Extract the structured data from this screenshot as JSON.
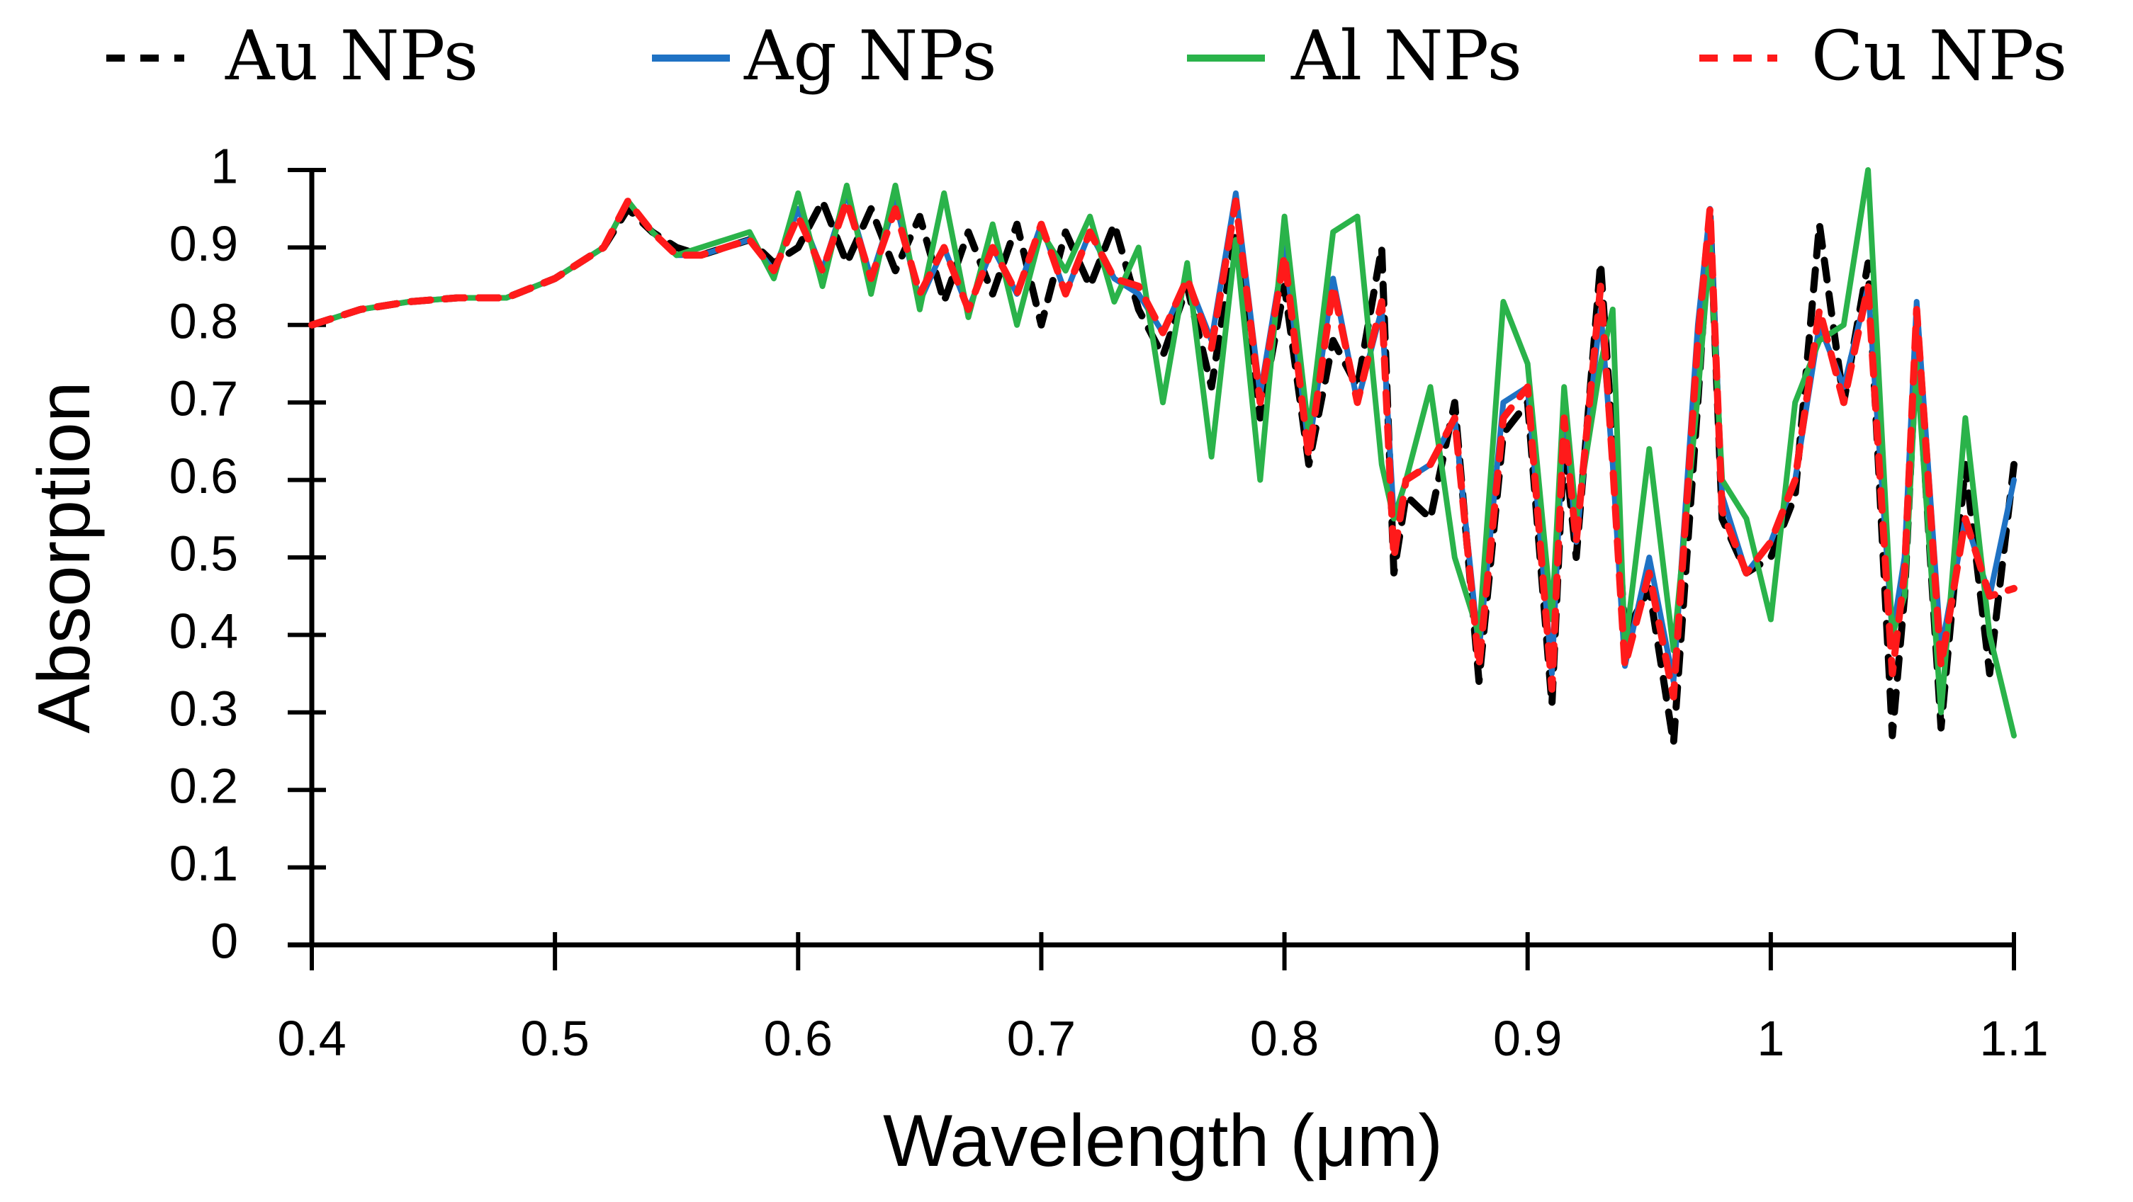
{
  "chart_data": {
    "type": "line",
    "title": "",
    "xlabel": "Wavelength (μm)",
    "ylabel": "Absorption",
    "xlim": [
      0.4,
      1.1
    ],
    "ylim": [
      0,
      1
    ],
    "xticks": [
      "0.4",
      "0.5",
      "0.6",
      "0.7",
      "0.8",
      "0.9",
      "1",
      "1.1"
    ],
    "yticks": [
      "0",
      "0.1",
      "0.2",
      "0.3",
      "0.4",
      "0.5",
      "0.6",
      "0.7",
      "0.8",
      "0.9",
      "1"
    ],
    "legend_position": "top",
    "series": [
      {
        "name": "Au NPs",
        "color": "#000000",
        "dash": "dashed",
        "x": [
          0.4,
          0.42,
          0.44,
          0.46,
          0.48,
          0.5,
          0.52,
          0.53,
          0.54,
          0.55,
          0.56,
          0.57,
          0.58,
          0.59,
          0.6,
          0.61,
          0.62,
          0.63,
          0.64,
          0.65,
          0.66,
          0.67,
          0.68,
          0.69,
          0.7,
          0.71,
          0.72,
          0.73,
          0.74,
          0.75,
          0.76,
          0.77,
          0.78,
          0.79,
          0.8,
          0.81,
          0.82,
          0.83,
          0.84,
          0.845,
          0.85,
          0.86,
          0.87,
          0.88,
          0.89,
          0.9,
          0.91,
          0.915,
          0.92,
          0.93,
          0.935,
          0.94,
          0.95,
          0.96,
          0.97,
          0.975,
          0.98,
          0.99,
          1.0,
          1.01,
          1.02,
          1.03,
          1.04,
          1.05,
          1.055,
          1.06,
          1.07,
          1.08,
          1.09,
          1.1
        ],
        "y": [
          0.8,
          0.82,
          0.83,
          0.835,
          0.835,
          0.86,
          0.9,
          0.95,
          0.92,
          0.9,
          0.89,
          0.9,
          0.91,
          0.88,
          0.9,
          0.96,
          0.88,
          0.95,
          0.87,
          0.94,
          0.83,
          0.92,
          0.84,
          0.93,
          0.8,
          0.92,
          0.85,
          0.93,
          0.82,
          0.76,
          0.85,
          0.72,
          0.92,
          0.68,
          0.85,
          0.62,
          0.78,
          0.72,
          0.9,
          0.48,
          0.58,
          0.55,
          0.7,
          0.34,
          0.66,
          0.7,
          0.31,
          0.65,
          0.5,
          0.88,
          0.65,
          0.4,
          0.46,
          0.26,
          0.7,
          0.94,
          0.55,
          0.48,
          0.5,
          0.58,
          0.93,
          0.7,
          0.88,
          0.27,
          0.45,
          0.78,
          0.28,
          0.62,
          0.35,
          0.62
        ]
      },
      {
        "name": "Ag NPs",
        "color": "#1f72c4",
        "dash": "solid",
        "x": [
          0.4,
          0.42,
          0.44,
          0.46,
          0.48,
          0.5,
          0.52,
          0.53,
          0.54,
          0.55,
          0.56,
          0.57,
          0.58,
          0.59,
          0.6,
          0.61,
          0.62,
          0.63,
          0.64,
          0.65,
          0.66,
          0.67,
          0.68,
          0.69,
          0.7,
          0.71,
          0.72,
          0.73,
          0.74,
          0.75,
          0.76,
          0.77,
          0.78,
          0.79,
          0.8,
          0.81,
          0.82,
          0.83,
          0.84,
          0.845,
          0.85,
          0.86,
          0.87,
          0.88,
          0.89,
          0.9,
          0.91,
          0.915,
          0.92,
          0.93,
          0.935,
          0.94,
          0.95,
          0.96,
          0.97,
          0.975,
          0.98,
          0.99,
          1.0,
          1.01,
          1.02,
          1.03,
          1.04,
          1.05,
          1.055,
          1.06,
          1.07,
          1.08,
          1.09,
          1.1
        ],
        "y": [
          0.8,
          0.82,
          0.83,
          0.835,
          0.835,
          0.86,
          0.9,
          0.96,
          0.92,
          0.89,
          0.89,
          0.9,
          0.91,
          0.87,
          0.95,
          0.87,
          0.97,
          0.86,
          0.96,
          0.83,
          0.9,
          0.82,
          0.9,
          0.84,
          0.93,
          0.84,
          0.92,
          0.86,
          0.84,
          0.79,
          0.86,
          0.78,
          0.97,
          0.71,
          0.9,
          0.64,
          0.86,
          0.7,
          0.82,
          0.55,
          0.6,
          0.62,
          0.68,
          0.38,
          0.7,
          0.72,
          0.35,
          0.7,
          0.52,
          0.82,
          0.62,
          0.36,
          0.5,
          0.34,
          0.8,
          0.95,
          0.58,
          0.48,
          0.52,
          0.6,
          0.8,
          0.72,
          0.85,
          0.4,
          0.5,
          0.83,
          0.38,
          0.55,
          0.45,
          0.6
        ]
      },
      {
        "name": "Al NPs",
        "color": "#2ab34a",
        "dash": "solid",
        "x": [
          0.4,
          0.42,
          0.44,
          0.46,
          0.48,
          0.5,
          0.52,
          0.53,
          0.54,
          0.55,
          0.56,
          0.57,
          0.58,
          0.59,
          0.6,
          0.61,
          0.62,
          0.63,
          0.64,
          0.65,
          0.66,
          0.67,
          0.68,
          0.69,
          0.7,
          0.71,
          0.72,
          0.73,
          0.74,
          0.75,
          0.76,
          0.77,
          0.78,
          0.79,
          0.8,
          0.81,
          0.82,
          0.83,
          0.84,
          0.845,
          0.85,
          0.86,
          0.87,
          0.88,
          0.89,
          0.9,
          0.91,
          0.915,
          0.92,
          0.93,
          0.935,
          0.94,
          0.95,
          0.96,
          0.97,
          0.975,
          0.98,
          0.99,
          1.0,
          1.01,
          1.02,
          1.03,
          1.04,
          1.05,
          1.055,
          1.06,
          1.07,
          1.08,
          1.09,
          1.1
        ],
        "y": [
          0.8,
          0.82,
          0.83,
          0.835,
          0.835,
          0.86,
          0.9,
          0.96,
          0.92,
          0.89,
          0.9,
          0.91,
          0.92,
          0.86,
          0.97,
          0.85,
          0.98,
          0.84,
          0.98,
          0.82,
          0.97,
          0.81,
          0.93,
          0.8,
          0.92,
          0.87,
          0.94,
          0.83,
          0.9,
          0.7,
          0.88,
          0.63,
          0.91,
          0.6,
          0.94,
          0.66,
          0.92,
          0.94,
          0.62,
          0.55,
          0.6,
          0.72,
          0.5,
          0.4,
          0.83,
          0.75,
          0.42,
          0.72,
          0.55,
          0.75,
          0.82,
          0.38,
          0.64,
          0.38,
          0.71,
          0.9,
          0.6,
          0.55,
          0.42,
          0.7,
          0.78,
          0.8,
          1.0,
          0.4,
          0.45,
          0.75,
          0.3,
          0.68,
          0.4,
          0.27
        ]
      },
      {
        "name": "Cu NPs",
        "color": "#ff1a1a",
        "dash": "dashed",
        "x": [
          0.4,
          0.42,
          0.44,
          0.46,
          0.48,
          0.5,
          0.52,
          0.53,
          0.54,
          0.55,
          0.56,
          0.57,
          0.58,
          0.59,
          0.6,
          0.61,
          0.62,
          0.63,
          0.64,
          0.65,
          0.66,
          0.67,
          0.68,
          0.69,
          0.7,
          0.71,
          0.72,
          0.73,
          0.74,
          0.75,
          0.76,
          0.77,
          0.78,
          0.79,
          0.8,
          0.81,
          0.82,
          0.83,
          0.84,
          0.845,
          0.85,
          0.86,
          0.87,
          0.88,
          0.89,
          0.9,
          0.91,
          0.915,
          0.92,
          0.93,
          0.935,
          0.94,
          0.95,
          0.96,
          0.97,
          0.975,
          0.98,
          0.99,
          1.0,
          1.01,
          1.02,
          1.03,
          1.04,
          1.05,
          1.055,
          1.06,
          1.07,
          1.08,
          1.09,
          1.1
        ],
        "y": [
          0.8,
          0.82,
          0.83,
          0.835,
          0.835,
          0.86,
          0.9,
          0.96,
          0.92,
          0.89,
          0.89,
          0.9,
          0.91,
          0.87,
          0.94,
          0.87,
          0.96,
          0.86,
          0.95,
          0.84,
          0.9,
          0.82,
          0.9,
          0.84,
          0.93,
          0.84,
          0.92,
          0.86,
          0.85,
          0.79,
          0.86,
          0.77,
          0.96,
          0.7,
          0.89,
          0.63,
          0.85,
          0.7,
          0.83,
          0.5,
          0.6,
          0.62,
          0.68,
          0.36,
          0.68,
          0.72,
          0.33,
          0.68,
          0.52,
          0.85,
          0.62,
          0.36,
          0.48,
          0.32,
          0.78,
          0.95,
          0.56,
          0.48,
          0.52,
          0.6,
          0.82,
          0.7,
          0.85,
          0.35,
          0.48,
          0.82,
          0.36,
          0.55,
          0.45,
          0.46
        ]
      }
    ]
  }
}
